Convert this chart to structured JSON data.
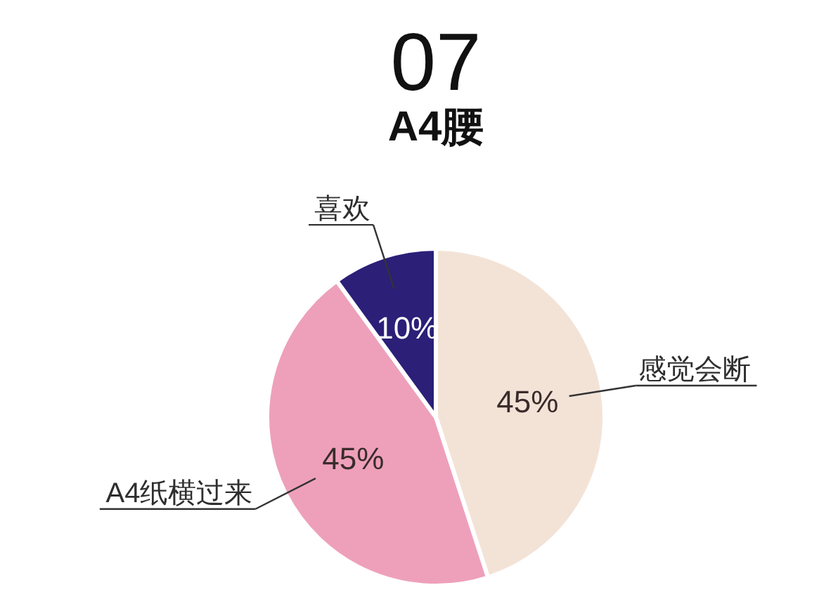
{
  "chart_data": {
    "type": "pie",
    "title": "07",
    "subtitle": "A4腰",
    "categories": [
      "感觉会断",
      "A4纸横过来",
      "喜欢"
    ],
    "values": [
      45,
      45,
      10
    ],
    "colors": [
      "#f3e3d7",
      "#eea0bb",
      "#2b1f78"
    ],
    "value_labels": [
      "45%",
      "45%",
      "10%"
    ]
  }
}
